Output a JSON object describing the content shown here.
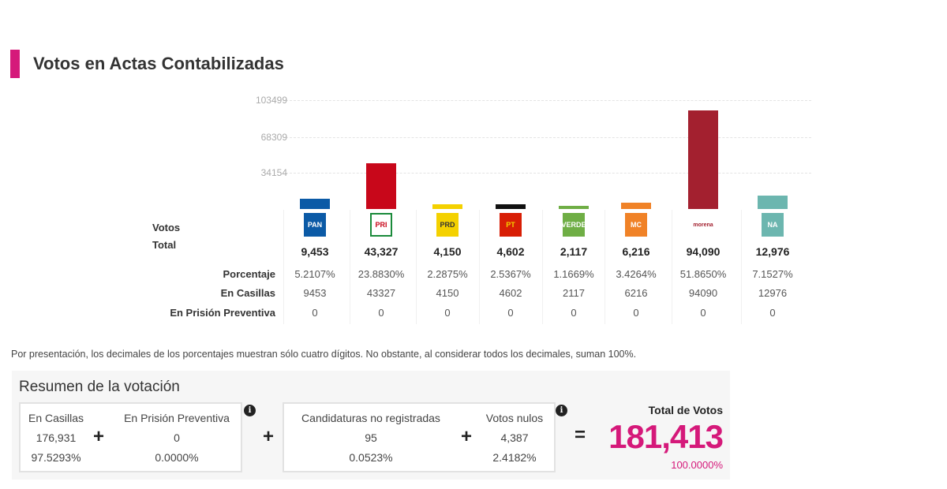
{
  "title": "Votos en Actas Contabilizadas",
  "colors": {
    "accent": "#d5197a"
  },
  "chart_data": {
    "type": "bar",
    "y_ticks": [
      "103499",
      "68309",
      "34154"
    ],
    "ylim": [
      0,
      103499
    ],
    "grid": true,
    "categories": [
      "PAN",
      "PRI",
      "PRD",
      "PT",
      "PVEM",
      "MC",
      "MORENA",
      "NUEVA ALIANZA"
    ],
    "values": [
      9453,
      43327,
      4150,
      4602,
      2117,
      6216,
      94090,
      12976
    ],
    "bar_colors": [
      "#0b5aa6",
      "#c8071a",
      "#f4d100",
      "#111111",
      "#6fae45",
      "#f08227",
      "#a3202f",
      "#6cb6af"
    ]
  },
  "table": {
    "label_votos": "Votos",
    "label_total": "Total",
    "label_pct": "Porcentaje",
    "label_casillas": "En Casillas",
    "label_prision": "En Prisión Preventiva",
    "parties": [
      {
        "logo": "pan-logo-icon",
        "logo_text": "PAN",
        "total": "9,453",
        "pct": "5.2107%",
        "casillas": "9453",
        "prision": "0"
      },
      {
        "logo": "pri-logo-icon",
        "logo_text": "PRI",
        "total": "43,327",
        "pct": "23.8830%",
        "casillas": "43327",
        "prision": "0"
      },
      {
        "logo": "prd-logo-icon",
        "logo_text": "PRD",
        "total": "4,150",
        "pct": "2.2875%",
        "casillas": "4150",
        "prision": "0"
      },
      {
        "logo": "pt-logo-icon",
        "logo_text": "PT",
        "total": "4,602",
        "pct": "2.5367%",
        "casillas": "4602",
        "prision": "0"
      },
      {
        "logo": "pvem-logo-icon",
        "logo_text": "VERDE",
        "total": "2,117",
        "pct": "1.1669%",
        "casillas": "2117",
        "prision": "0"
      },
      {
        "logo": "mc-logo-icon",
        "logo_text": "MC",
        "total": "6,216",
        "pct": "3.4264%",
        "casillas": "6216",
        "prision": "0"
      },
      {
        "logo": "morena-logo-icon",
        "logo_text": "morena",
        "total": "94,090",
        "pct": "51.8650%",
        "casillas": "94090",
        "prision": "0"
      },
      {
        "logo": "nueva-alianza-logo-icon",
        "logo_text": "NA",
        "total": "12,976",
        "pct": "7.1527%",
        "casillas": "12976",
        "prision": "0"
      }
    ]
  },
  "note": "Por presentación, los decimales de los porcentajes muestran sólo cuatro dígitos. No obstante, al considerar todos los decimales, suman 100%.",
  "summary": {
    "title": "Resumen de la votación",
    "casillas": {
      "label": "En Casillas",
      "value": "176,931",
      "pct": "97.5293%"
    },
    "prision": {
      "label": "En Prisión Preventiva",
      "value": "0",
      "pct": "0.0000%"
    },
    "no_reg": {
      "label": "Candidaturas no registradas",
      "value": "95",
      "pct": "0.0523%"
    },
    "nulos": {
      "label": "Votos nulos",
      "value": "4,387",
      "pct": "2.4182%"
    },
    "total": {
      "label": "Total de Votos",
      "value": "181,413",
      "pct": "100.0000%"
    },
    "plus": "+",
    "equals": "=",
    "info": "i"
  }
}
